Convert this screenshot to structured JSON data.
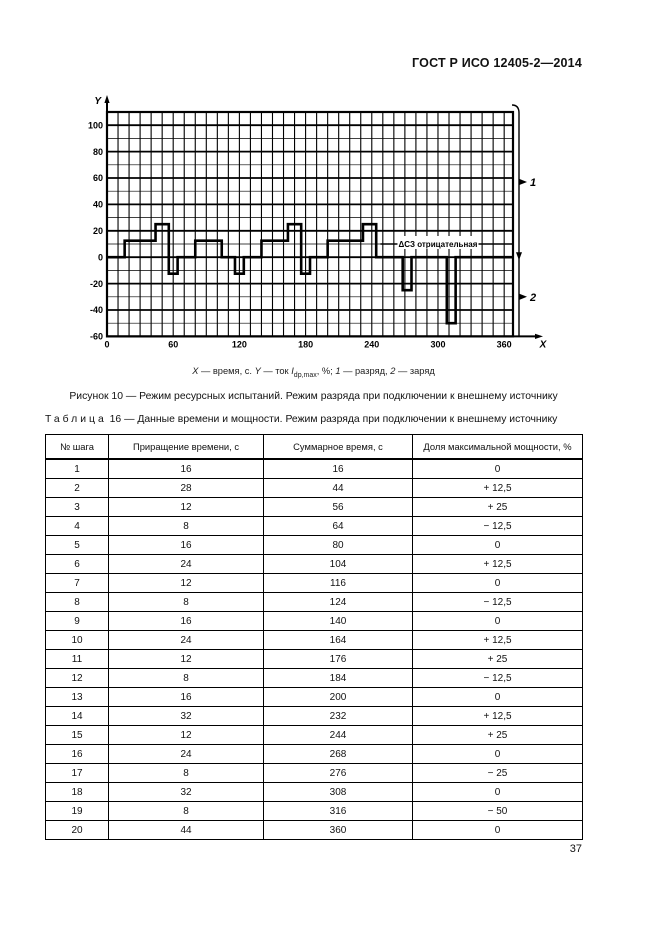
{
  "page": {
    "header_title": "ГОСТ Р ИСО 12405-2—2014",
    "page_number": "37"
  },
  "figure": {
    "caption": "Рисунок 10 — Режим ресурсных испытаний. Режим разряда при подключении к внешнему источнику",
    "legend_segments": [
      {
        "text": "X",
        "style": "italic"
      },
      {
        "text": " — время, с. ",
        "style": ""
      },
      {
        "text": "Y",
        "style": "italic"
      },
      {
        "text": " — ток ",
        "style": ""
      },
      {
        "text": "I",
        "style": "italic"
      },
      {
        "text": "dp,max",
        "style": "sub"
      },
      {
        "text": ", %; ",
        "style": ""
      },
      {
        "text": "1",
        "style": "italic"
      },
      {
        "text": " — разряд, ",
        "style": ""
      },
      {
        "text": "2",
        "style": "italic"
      },
      {
        "text": " — заряд",
        "style": ""
      }
    ]
  },
  "chart_data": {
    "type": "line",
    "subtype": "step",
    "title": "Режим ресурсных испытаний. Режим разряда при подключении к внешнему источнику",
    "xlabel": "X",
    "ylabel": "Y",
    "x_ticks": [
      0,
      60,
      120,
      180,
      240,
      300,
      360
    ],
    "y_ticks": [
      100,
      80,
      60,
      40,
      20,
      0,
      -20,
      -40,
      -60
    ],
    "xlim": [
      0,
      368
    ],
    "ylim": [
      -60,
      110
    ],
    "grid": "on",
    "grid_minor_step": 10,
    "y_major_step": 20,
    "annotation": {
      "text": "ΔСЗ отрицательная",
      "x": 300,
      "y": 10
    },
    "zone_markers": [
      {
        "label": "1",
        "y": 57,
        "meaning": "разряд"
      },
      {
        "label": "2",
        "y": -30,
        "meaning": "заряд"
      }
    ],
    "series": [
      {
        "name": "Доля максимальной мощности, %",
        "steps": [
          [
            0,
            16,
            0
          ],
          [
            16,
            44,
            12.5
          ],
          [
            44,
            56,
            25
          ],
          [
            56,
            64,
            -12.5
          ],
          [
            64,
            80,
            0
          ],
          [
            80,
            104,
            12.5
          ],
          [
            104,
            116,
            0
          ],
          [
            116,
            124,
            -12.5
          ],
          [
            124,
            140,
            0
          ],
          [
            140,
            164,
            12.5
          ],
          [
            164,
            176,
            25
          ],
          [
            176,
            184,
            -12.5
          ],
          [
            184,
            200,
            0
          ],
          [
            200,
            232,
            12.5
          ],
          [
            232,
            244,
            25
          ],
          [
            244,
            268,
            0
          ],
          [
            268,
            276,
            -25
          ],
          [
            276,
            308,
            0
          ],
          [
            308,
            316,
            -50
          ],
          [
            316,
            360,
            0
          ]
        ]
      }
    ]
  },
  "table": {
    "caption_word": "Таблица",
    "caption_number": "16",
    "caption_rest": "— Данные времени и мощности. Режим разряда при подключении к внешнему источнику",
    "columns": [
      "№ шага",
      "Приращение времени, с",
      "Суммарное время, с",
      "Доля максимальной мощности, %"
    ],
    "rows": [
      [
        "1",
        "16",
        "16",
        "0"
      ],
      [
        "2",
        "28",
        "44",
        "+ 12,5"
      ],
      [
        "3",
        "12",
        "56",
        "+ 25"
      ],
      [
        "4",
        "8",
        "64",
        "− 12,5"
      ],
      [
        "5",
        "16",
        "80",
        "0"
      ],
      [
        "6",
        "24",
        "104",
        "+ 12,5"
      ],
      [
        "7",
        "12",
        "116",
        "0"
      ],
      [
        "8",
        "8",
        "124",
        "− 12,5"
      ],
      [
        "9",
        "16",
        "140",
        "0"
      ],
      [
        "10",
        "24",
        "164",
        "+ 12,5"
      ],
      [
        "11",
        "12",
        "176",
        "+ 25"
      ],
      [
        "12",
        "8",
        "184",
        "− 12,5"
      ],
      [
        "13",
        "16",
        "200",
        "0"
      ],
      [
        "14",
        "32",
        "232",
        "+ 12,5"
      ],
      [
        "15",
        "12",
        "244",
        "+ 25"
      ],
      [
        "16",
        "24",
        "268",
        "0"
      ],
      [
        "17",
        "8",
        "276",
        "− 25"
      ],
      [
        "18",
        "32",
        "308",
        "0"
      ],
      [
        "19",
        "8",
        "316",
        "− 50"
      ],
      [
        "20",
        "44",
        "360",
        "0"
      ]
    ]
  }
}
